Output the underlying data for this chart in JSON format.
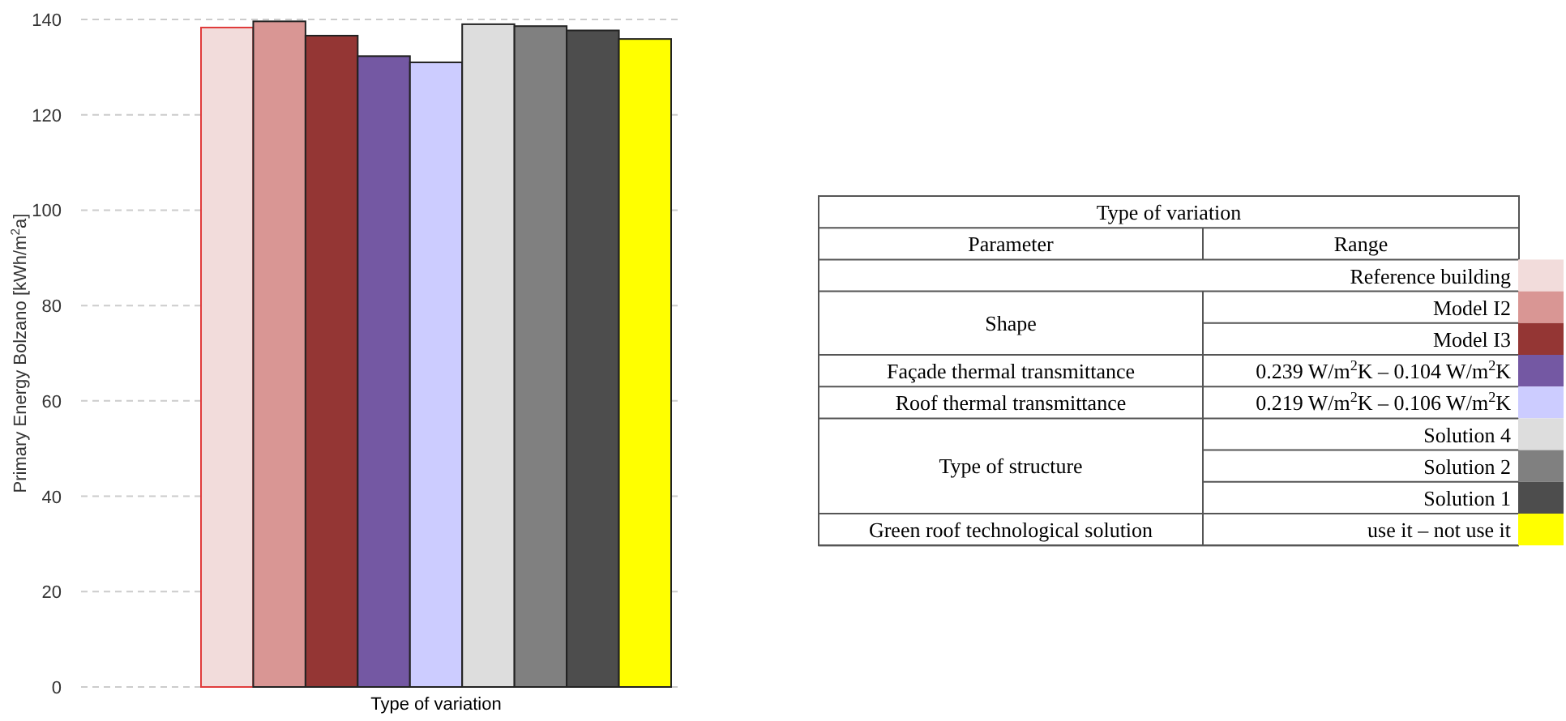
{
  "chart_data": {
    "type": "bar",
    "xlabel": "Type of variation",
    "ylabel": "Primary Energy Bolzano [kWh/m$^{2}$a]",
    "categories": [
      null
    ],
    "series": [
      {
        "name": "Reference building",
        "color": "#f2dcdb",
        "values": [
          138.3
        ]
      },
      {
        "name": "Model I2",
        "color": "#d99694",
        "values": [
          139.6
        ]
      },
      {
        "name": "Model I3",
        "color": "#943634",
        "values": [
          136.6
        ]
      },
      {
        "name": "0.239 W/m$^{2}$K – 0.104 W/m$^{2}$K",
        "color": "#7458a3",
        "values": [
          132.3
        ]
      },
      {
        "name": "0.219 W/m$^{2}$K – 0.106 W/m$^{2}$K",
        "color": "#ccccff",
        "values": [
          131.0
        ]
      },
      {
        "name": "Solution 4",
        "color": "#dddddd",
        "values": [
          139.0
        ]
      },
      {
        "name": "Solution 2",
        "color": "#808080",
        "values": [
          138.6
        ]
      },
      {
        "name": "Solution 1",
        "color": "#4d4d4d",
        "values": [
          137.7
        ]
      },
      {
        "name": "use it – not use it",
        "color": "#ffff00",
        "values": [
          135.9
        ]
      }
    ],
    "ylim": [
      0,
      140
    ],
    "yticks": [
      0,
      20,
      40,
      60,
      80,
      100,
      120,
      140
    ],
    "grid": "y",
    "legend": "right",
    "legend_title": "Type of variation",
    "annotations": [
      "Parameter",
      "Range",
      "Shape",
      "Façade thermal transmittance",
      "Roof thermal transmittance",
      "Type of structure",
      "Green roof technological solution"
    ]
  }
}
